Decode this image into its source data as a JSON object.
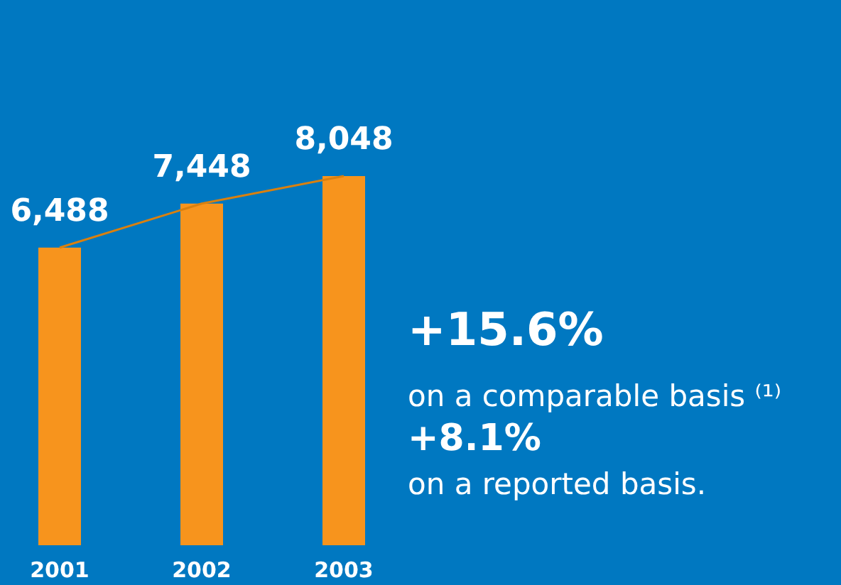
{
  "chart_data": {
    "type": "bar",
    "categories": [
      "2001",
      "2002",
      "2003"
    ],
    "series": [
      {
        "color": "#f7941d",
        "values": [
          6488,
          7448,
          8048
        ],
        "value_labels": [
          "6,488",
          "7,448",
          "8,048"
        ]
      },
      {
        "type": "line",
        "color": "#d9800f",
        "values": [
          6488,
          7448,
          8048
        ]
      }
    ],
    "tick_labels": "x",
    "grid": false,
    "legend": false,
    "annotations": [
      "+15.6%",
      "on a comparable basis ⁽¹⁾",
      "+8.1%",
      "on a reported basis."
    ]
  }
}
